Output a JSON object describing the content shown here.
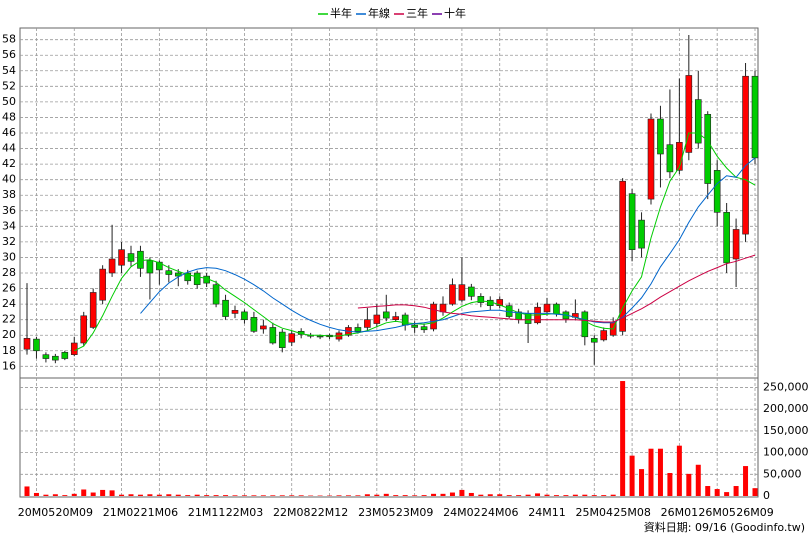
{
  "chart_data": {
    "type": "candlestick",
    "categories": [
      null,
      "20M05",
      null,
      null,
      null,
      "20M09",
      null,
      null,
      null,
      null,
      "21M02",
      null,
      null,
      null,
      "21M06",
      null,
      null,
      null,
      null,
      "21M11",
      null,
      null,
      null,
      "22M03",
      null,
      null,
      null,
      null,
      "22M08",
      null,
      null,
      null,
      "22M12",
      null,
      null,
      null,
      null,
      "23M05",
      null,
      null,
      null,
      "23M09",
      null,
      null,
      null,
      null,
      "24M02",
      null,
      null,
      null,
      "24M06",
      null,
      null,
      null,
      null,
      "24M11",
      null,
      null,
      null,
      null,
      "25M04",
      null,
      null,
      null,
      "25M08",
      null,
      null,
      null,
      null,
      "26M01",
      null,
      null,
      null,
      "26M05",
      null,
      null,
      null,
      "26M09"
    ],
    "open": [
      18.2,
      19.5,
      17.5,
      17.3,
      17.8,
      17.5,
      19,
      21,
      24.5,
      28,
      29,
      30.5,
      30.8,
      29.6,
      29.4,
      28.3,
      28,
      28,
      28,
      27.6,
      26.5,
      24.5,
      22.8,
      23,
      22.3,
      20.8,
      21,
      20.4,
      19.1,
      20.5,
      20,
      19.9,
      19.8,
      19.5,
      20,
      21,
      21,
      21.5,
      23,
      22,
      22.6,
      21.3,
      21.1,
      20.8,
      23,
      24,
      24.5,
      26.2,
      25,
      24.5,
      23.8,
      23.8,
      23,
      22.8,
      21.6,
      23,
      24,
      23,
      22.3,
      23,
      19.6,
      19.4,
      20,
      20.5,
      38.2,
      34.8,
      37.5,
      47.8,
      44.5,
      41.2,
      43.5,
      50.3,
      48.4,
      41.2,
      35.8,
      29.8,
      33,
      53.3
    ],
    "high": [
      26.7,
      19.8,
      17.8,
      17.6,
      18,
      19.8,
      23,
      26,
      29,
      34.2,
      32,
      31.5,
      31.5,
      30,
      29.6,
      29,
      28.5,
      28.4,
      28.3,
      28,
      27,
      25.2,
      23.8,
      23.3,
      23,
      22,
      21.6,
      20.8,
      20.6,
      20.9,
      20.3,
      20.1,
      20.2,
      20.6,
      21.3,
      21.5,
      23.5,
      24,
      25.2,
      23,
      22.9,
      21.8,
      21.5,
      24.3,
      25,
      27.3,
      30,
      26.6,
      25.4,
      25,
      25,
      24.2,
      23.4,
      23.2,
      24.2,
      24.8,
      24.2,
      23.2,
      24.6,
      23.2,
      20,
      21,
      22.3,
      40.2,
      38.8,
      35.8,
      48.5,
      49.5,
      51.6,
      53,
      58.6,
      54,
      48.8,
      42.5,
      37,
      35,
      55,
      54
    ],
    "low": [
      17.5,
      17,
      16.5,
      16.4,
      16.8,
      17.3,
      18.6,
      20.8,
      24,
      27.5,
      28,
      28.8,
      27.5,
      24.6,
      26.5,
      26.8,
      26.3,
      26.5,
      26,
      26.2,
      23.6,
      22,
      22.2,
      21.5,
      20.3,
      20.2,
      18.8,
      17.8,
      18.6,
      19.6,
      19.6,
      19.5,
      19.5,
      19.2,
      19.8,
      20.2,
      20.6,
      21,
      21.8,
      21.7,
      20.6,
      20.3,
      20.3,
      20.5,
      22.5,
      23.8,
      24.2,
      24.5,
      23.6,
      23.2,
      23.5,
      22.2,
      21.5,
      19,
      21.4,
      22.5,
      22.4,
      21.6,
      21.9,
      18.7,
      16.2,
      19.2,
      19.8,
      20,
      29.5,
      30,
      36.8,
      39,
      40.2,
      40.7,
      42.5,
      44,
      37.5,
      34,
      28,
      26.2,
      32,
      42
    ],
    "close": [
      19.6,
      18,
      17,
      16.8,
      17,
      19,
      22.5,
      25.5,
      28.5,
      29.8,
      31,
      29.5,
      28.6,
      28,
      28.4,
      27.8,
      27.6,
      27,
      26.5,
      26.7,
      24,
      22.4,
      23.2,
      22,
      20.5,
      21.2,
      19,
      18.4,
      20.2,
      20.1,
      19.9,
      19.8,
      20,
      20.3,
      21,
      20.5,
      22,
      22.6,
      22.2,
      22.4,
      21.3,
      21,
      20.7,
      24,
      24,
      26.5,
      26.5,
      25,
      24.2,
      23.8,
      24.6,
      22.4,
      22,
      21.5,
      23.6,
      24,
      22.8,
      22.1,
      22.8,
      19.8,
      19.1,
      20.6,
      21.7,
      39.8,
      31,
      31.2,
      47.8,
      43.3,
      41,
      44.8,
      53.4,
      44.7,
      39.5,
      35.8,
      29.3,
      33.6,
      53.3,
      42.8
    ],
    "up_color": "#ff0000",
    "down_color": "#00cc00",
    "ylim": [
      14.5,
      59.5
    ],
    "yticks": [
      16,
      18,
      20,
      22,
      24,
      26,
      28,
      30,
      32,
      34,
      36,
      38,
      40,
      42,
      44,
      46,
      48,
      50,
      52,
      54,
      56,
      58
    ],
    "grid": true,
    "series": [
      {
        "name": "半年",
        "color": "#00cc00",
        "values": [
          null,
          null,
          null,
          null,
          null,
          18,
          18.6,
          20.3,
          22.5,
          25,
          27.3,
          28.8,
          29.6,
          29.7,
          29.3,
          28.7,
          28.2,
          27.8,
          27.5,
          27.3,
          26.8,
          25.8,
          25,
          24.2,
          23.3,
          22.4,
          21.5,
          20.9,
          20.6,
          20.2,
          20,
          20,
          19.9,
          19.9,
          20.1,
          20.3,
          20.6,
          21.1,
          21.6,
          21.8,
          21.6,
          21.5,
          21.4,
          21.6,
          22.2,
          23,
          23.7,
          24.2,
          24.4,
          24.3,
          23.9,
          23.4,
          22.9,
          22.6,
          22.6,
          22.7,
          22.8,
          22.6,
          22.3,
          21.8,
          21.2,
          20.9,
          20.8,
          23.5,
          25.7,
          27.5,
          32.5,
          36.5,
          39.8,
          41.6,
          46,
          46,
          45,
          43,
          41.5,
          40.3,
          40,
          39.3
        ]
      },
      {
        "name": "年線",
        "color": "#0066cc",
        "values": [
          null,
          null,
          null,
          null,
          null,
          null,
          null,
          null,
          null,
          null,
          null,
          null,
          22.8,
          24.2,
          25.6,
          26.7,
          27.5,
          28.1,
          28.5,
          28.7,
          28.6,
          28.3,
          27.8,
          27.2,
          26.5,
          25.7,
          24.8,
          24,
          23.2,
          22.5,
          21.9,
          21.4,
          21,
          20.7,
          20.5,
          20.4,
          20.5,
          20.6,
          20.8,
          21,
          21.3,
          21.5,
          21.6,
          21.8,
          22,
          22.4,
          22.8,
          23,
          23.1,
          23.2,
          23.2,
          23,
          22.9,
          22.8,
          22.8,
          22.8,
          22.7,
          22.6,
          22.3,
          22,
          21.7,
          21.6,
          21.6,
          22.3,
          23.5,
          24.8,
          26.6,
          28.8,
          30.5,
          32.3,
          34.5,
          36.5,
          38,
          39.5,
          40.5,
          40.3,
          41.8,
          42.8
        ]
      },
      {
        "name": "三年",
        "color": "#cc0044",
        "values": [
          null,
          null,
          null,
          null,
          null,
          null,
          null,
          null,
          null,
          null,
          null,
          null,
          null,
          null,
          null,
          null,
          null,
          null,
          null,
          null,
          null,
          null,
          null,
          null,
          null,
          null,
          null,
          null,
          null,
          null,
          null,
          null,
          null,
          null,
          null,
          23.5,
          23.6,
          23.7,
          23.8,
          23.9,
          23.9,
          23.8,
          23.6,
          23.3,
          23,
          22.8,
          22.7,
          22.5,
          22.4,
          22.3,
          22.2,
          22.1,
          22,
          22,
          22,
          22,
          22,
          22,
          22,
          21.9,
          21.8,
          21.7,
          21.7,
          22.2,
          22.8,
          23.4,
          24.1,
          24.9,
          25.6,
          26.3,
          27,
          27.6,
          28.2,
          28.7,
          29.2,
          29.5,
          29.9,
          30.3
        ]
      },
      {
        "name": "十年",
        "color": "#660099",
        "values": [
          null,
          null,
          null,
          null,
          null,
          null,
          null,
          null,
          null,
          null,
          null,
          null,
          null,
          null,
          null,
          null,
          null,
          null,
          null,
          null,
          null,
          null,
          null,
          null,
          null,
          null,
          null,
          null,
          null,
          null,
          null,
          null,
          null,
          null,
          null,
          null,
          null,
          null,
          null,
          null,
          null,
          null,
          null,
          null,
          null,
          null,
          null,
          null,
          null,
          null,
          null,
          null,
          null,
          null,
          null,
          null,
          null,
          null,
          null,
          null,
          null,
          null,
          null,
          null,
          null,
          null,
          null,
          null,
          null,
          null,
          null,
          null,
          null,
          null,
          null,
          null,
          null,
          null
        ]
      }
    ],
    "volume": {
      "color": "#ff0000",
      "values": [
        22000,
        7000,
        3000,
        4000,
        2000,
        5000,
        15000,
        8000,
        14000,
        13000,
        3000,
        4000,
        3000,
        4000,
        3000,
        4000,
        3000,
        2000,
        3000,
        2000,
        2000,
        2000,
        1500,
        1500,
        1500,
        1500,
        1500,
        1500,
        1500,
        1500,
        1000,
        1000,
        1000,
        1500,
        1500,
        1500,
        4000,
        3000,
        5000,
        2000,
        2000,
        1500,
        2000,
        5000,
        5000,
        8000,
        14000,
        7000,
        3000,
        4000,
        4000,
        2000,
        2000,
        3000,
        6000,
        3000,
        2000,
        2000,
        3000,
        3000,
        2000,
        2000,
        3000,
        265000,
        93000,
        62000,
        109000,
        109000,
        53000,
        116000,
        51000,
        72000,
        23000,
        16000,
        9000,
        23000,
        69000,
        18000
      ],
      "ylim": [
        0,
        272000
      ],
      "yticks": [
        0,
        {
          "value": 50000,
          "label": "50,000"
        },
        {
          "value": 100000,
          "label": "100,000"
        },
        {
          "value": 150000,
          "label": "150,000"
        },
        {
          "value": 200000,
          "label": "200,000"
        },
        {
          "value": 250000,
          "label": "250,000"
        }
      ]
    },
    "footer": "資料日期: 09/16 (Goodinfo.tw)"
  }
}
